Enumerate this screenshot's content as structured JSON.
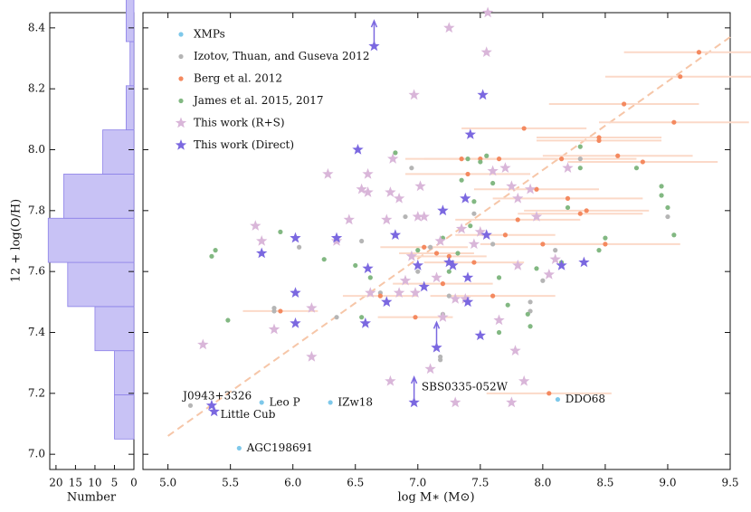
{
  "chart_data": [
    {
      "type": "histogram",
      "orientation": "horizontal",
      "xlabel": "Number",
      "color": "#c8c2f5",
      "edgecolor": "#8c80e8",
      "bins": [
        7.05,
        7.195,
        7.34,
        7.485,
        7.63,
        7.775,
        7.92,
        8.065,
        8.21,
        8.355,
        8.5
      ],
      "counts": [
        5,
        5,
        10,
        17,
        22,
        18,
        8,
        2,
        1,
        2
      ],
      "xlim": [
        21.6,
        0
      ],
      "xticks": [
        20,
        15,
        10,
        5,
        0
      ],
      "ylim": [
        6.95,
        8.45
      ]
    },
    {
      "type": "scatter",
      "xlabel": "log M∗ (M⊙)",
      "ylabel": "12 + log(O/H)",
      "legend": "upper left",
      "xlim": [
        4.8,
        9.5
      ],
      "ylim": [
        6.95,
        8.45
      ],
      "xticks": [
        {
          "value": 5,
          "label": "5.0"
        },
        5.5,
        {
          "value": 6,
          "label": "6.0"
        },
        6.5,
        {
          "value": 7,
          "label": "7.0"
        },
        7.5,
        {
          "value": 8,
          "label": "8.0"
        },
        8.5,
        {
          "value": 9,
          "label": "9.0"
        },
        9.5
      ],
      "yticks": [
        {
          "value": 7,
          "label": "7.0"
        },
        7.2,
        7.4,
        7.6,
        7.8,
        {
          "value": 8,
          "label": "8.0"
        },
        8.2,
        8.4
      ],
      "fit_line": {
        "x": [
          5.0,
          9.5
        ],
        "y": [
          7.06,
          8.37
        ],
        "color": "#f6c6a8"
      },
      "series": [
        {
          "name": "XMPs",
          "color": "#7ec8ea",
          "marker": "circle",
          "x": [
            5.57,
            5.75,
            6.3,
            8.12
          ],
          "y": [
            7.02,
            7.17,
            7.17,
            7.18
          ]
        },
        {
          "name": "Izotov, Thuan, and Guseva 2012",
          "color": "#b5b5b5",
          "marker": "circle",
          "x": [
            5.18,
            5.85,
            5.85,
            6.05,
            6.35,
            6.55,
            6.7,
            6.9,
            7.0,
            7.1,
            7.18,
            7.18,
            7.25,
            7.45,
            7.6,
            7.9,
            7.9,
            8.0,
            8.1,
            8.3,
            9.0,
            7.2,
            6.95
          ],
          "y": [
            7.16,
            7.48,
            7.47,
            7.68,
            7.45,
            7.7,
            7.53,
            7.78,
            7.6,
            7.68,
            7.32,
            7.31,
            7.52,
            7.79,
            7.69,
            7.5,
            7.47,
            7.57,
            7.67,
            7.97,
            7.78,
            7.46,
            7.94
          ]
        },
        {
          "name": "Berg et al. 2012",
          "color": "#f4895f",
          "errcolor": "#fbd9c8",
          "marker": "circle",
          "x": [
            5.9,
            6.7,
            6.98,
            7.05,
            7.2,
            7.25,
            7.35,
            7.4,
            7.5,
            7.6,
            7.65,
            7.7,
            7.8,
            7.85,
            7.95,
            8.0,
            8.05,
            8.15,
            8.2,
            8.3,
            8.35,
            8.45,
            8.45,
            8.5,
            8.6,
            8.65,
            8.8,
            9.05,
            9.1,
            9.25,
            7.45,
            7.15
          ],
          "y": [
            7.47,
            7.52,
            7.45,
            7.68,
            7.56,
            7.65,
            7.97,
            7.92,
            7.97,
            7.52,
            7.97,
            7.72,
            7.77,
            8.07,
            7.87,
            7.69,
            7.2,
            7.97,
            7.84,
            7.79,
            7.8,
            8.03,
            8.04,
            7.69,
            7.98,
            8.15,
            7.96,
            8.09,
            8.24,
            8.32,
            7.63,
            7.66
          ],
          "x_err": [
            0.3,
            0.3,
            0.3,
            0.35,
            0.4,
            0.3,
            0.3,
            0.5,
            0.6,
            0.5,
            0.4,
            0.4,
            0.5,
            0.5,
            0.5,
            0.5,
            0.5,
            0.6,
            0.6,
            0.5,
            0.5,
            0.5,
            0.5,
            0.6,
            0.6,
            0.6,
            0.6,
            0.6,
            0.6,
            0.6,
            0.4,
            0.3
          ]
        },
        {
          "name": "James et al. 2015, 2017",
          "color": "#82b882",
          "marker": "circle",
          "x": [
            5.35,
            5.38,
            5.48,
            5.9,
            6.25,
            6.5,
            6.55,
            6.62,
            6.8,
            6.82,
            7.0,
            7.2,
            7.25,
            7.32,
            7.35,
            7.4,
            7.45,
            7.5,
            7.55,
            7.6,
            7.65,
            7.72,
            7.88,
            7.9,
            7.95,
            8.15,
            8.3,
            8.3,
            8.5,
            8.45,
            8.75,
            8.95,
            8.95,
            9.0,
            9.05,
            7.65,
            7.42,
            8.2
          ],
          "y": [
            7.65,
            7.67,
            7.44,
            7.73,
            7.64,
            7.62,
            7.45,
            7.58,
            7.97,
            7.99,
            7.67,
            7.71,
            7.6,
            7.66,
            7.9,
            7.97,
            7.83,
            7.96,
            7.98,
            7.89,
            7.58,
            7.49,
            7.46,
            7.42,
            7.61,
            7.63,
            7.94,
            8.01,
            7.71,
            7.67,
            7.94,
            7.88,
            7.85,
            7.81,
            7.72,
            7.4,
            7.75,
            7.81
          ]
        },
        {
          "name": "This work (R+S)",
          "color": "#d9b6d9",
          "marker": "star",
          "x": [
            5.28,
            5.7,
            5.75,
            5.85,
            6.15,
            6.15,
            6.28,
            6.35,
            6.45,
            6.55,
            6.6,
            6.6,
            6.62,
            6.75,
            6.78,
            6.78,
            6.8,
            6.85,
            6.9,
            6.95,
            6.97,
            6.98,
            7.0,
            7.02,
            7.05,
            7.1,
            7.15,
            7.18,
            7.2,
            7.25,
            7.3,
            7.35,
            7.38,
            7.45,
            7.5,
            7.55,
            7.56,
            7.6,
            7.65,
            7.7,
            7.75,
            7.78,
            7.8,
            7.8,
            7.85,
            7.9,
            7.95,
            8.05,
            8.1,
            8.2,
            7.3,
            7.75,
            6.85
          ],
          "y": [
            7.36,
            7.75,
            7.7,
            7.41,
            7.48,
            7.32,
            7.92,
            7.7,
            7.77,
            7.87,
            7.92,
            7.86,
            7.53,
            7.77,
            7.24,
            7.86,
            7.97,
            7.53,
            7.57,
            7.65,
            8.18,
            7.53,
            7.78,
            7.88,
            7.78,
            7.28,
            7.58,
            7.7,
            7.45,
            8.4,
            7.51,
            7.74,
            7.51,
            7.69,
            7.73,
            8.32,
            8.45,
            7.93,
            7.44,
            7.94,
            7.88,
            7.34,
            7.84,
            7.62,
            7.24,
            7.87,
            7.78,
            7.59,
            7.64,
            7.94,
            7.17,
            7.17,
            7.84
          ]
        },
        {
          "name": "This work (Direct)",
          "color": "#7b68e0",
          "marker": "star",
          "x": [
            5.35,
            5.37,
            5.75,
            6.02,
            6.02,
            6.02,
            6.35,
            6.52,
            6.58,
            6.6,
            6.65,
            6.75,
            6.82,
            6.97,
            7.0,
            7.05,
            7.15,
            7.2,
            7.25,
            7.28,
            7.38,
            7.4,
            7.4,
            7.42,
            7.5,
            7.52,
            7.55,
            8.15,
            8.33
          ],
          "y": [
            7.16,
            7.14,
            7.66,
            7.71,
            7.53,
            7.43,
            7.71,
            8.0,
            7.43,
            7.61,
            8.34,
            7.5,
            7.72,
            7.17,
            7.62,
            7.55,
            7.35,
            7.8,
            7.63,
            7.62,
            7.84,
            7.58,
            7.5,
            8.05,
            7.39,
            8.18,
            7.72,
            7.62,
            7.63
          ],
          "lower_limit": [
            false,
            false,
            false,
            false,
            false,
            false,
            false,
            false,
            false,
            false,
            true,
            false,
            false,
            true,
            false,
            false,
            true,
            false,
            false,
            false,
            false,
            false,
            false,
            false,
            false,
            false,
            false,
            false,
            false
          ]
        }
      ],
      "annotations": [
        {
          "text": "J0943+3326",
          "x": 5.12,
          "y": 7.19
        },
        {
          "text": "Little Cub",
          "x": 5.42,
          "y": 7.13
        },
        {
          "text": "Leo P",
          "x": 5.81,
          "y": 7.17
        },
        {
          "text": "IZw18",
          "x": 6.36,
          "y": 7.17
        },
        {
          "text": "AGC198691",
          "x": 5.63,
          "y": 7.02
        },
        {
          "text": "SBS0335-052W",
          "x": 7.03,
          "y": 7.22
        },
        {
          "text": "DDO68",
          "x": 8.18,
          "y": 7.18
        }
      ]
    }
  ]
}
